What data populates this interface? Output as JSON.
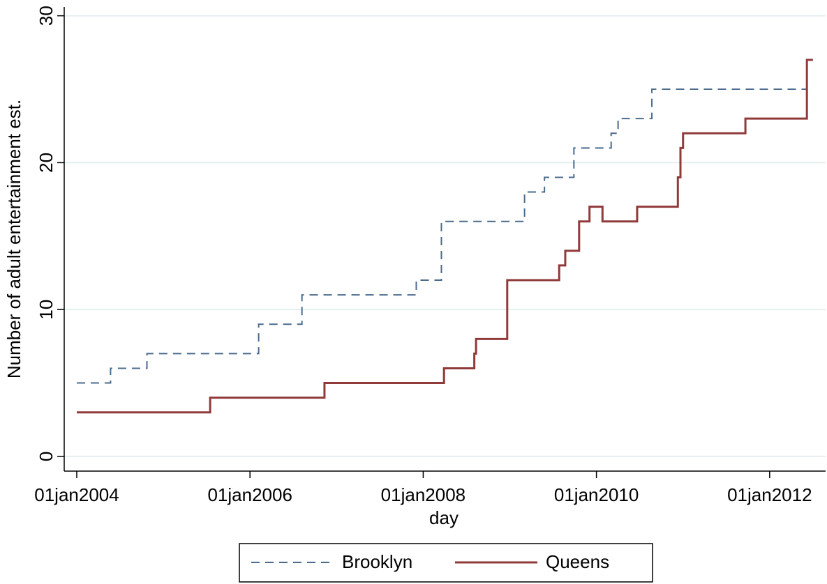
{
  "chart_data": {
    "type": "line",
    "x_label": "day",
    "y_label": "Number of adult entertainment est.",
    "xlim": [
      2003.855,
      2012.646
    ],
    "ylim": [
      -1,
      30.6
    ],
    "xticks": [
      {
        "value": 2004,
        "label": "01jan2004"
      },
      {
        "value": 2006,
        "label": "01jan2006"
      },
      {
        "value": 2008,
        "label": "01jan2008"
      },
      {
        "value": 2010,
        "label": "01jan2010"
      },
      {
        "value": 2012,
        "label": "01jan2012"
      }
    ],
    "yticks": [
      0,
      10,
      20,
      30
    ],
    "grid": true,
    "legend": "bottom",
    "series": [
      {
        "name": "Brooklyn",
        "color": "#4a6b8c",
        "style": "dashed",
        "x": [
          2004.0,
          2004.39,
          2004.39,
          2004.81,
          2004.81,
          2006.1,
          2006.1,
          2006.6,
          2006.6,
          2007.92,
          2007.92,
          2008.21,
          2008.21,
          2009.17,
          2009.17,
          2009.4,
          2009.4,
          2009.74,
          2009.74,
          2010.17,
          2010.17,
          2010.25,
          2010.25,
          2010.64,
          2010.64,
          2012.43,
          2012.43,
          2012.5
        ],
        "values": [
          5,
          5,
          6,
          6,
          7,
          7,
          9,
          9,
          11,
          11,
          12,
          12,
          16,
          16,
          18,
          18,
          19,
          19,
          21,
          21,
          22,
          22,
          23,
          23,
          25,
          25,
          27,
          27
        ]
      },
      {
        "name": "Queens",
        "color": "#903a3a",
        "style": "solid",
        "x": [
          2004.0,
          2005.54,
          2005.54,
          2006.86,
          2006.86,
          2008.24,
          2008.24,
          2008.59,
          2008.59,
          2008.61,
          2008.61,
          2008.97,
          2008.97,
          2009.57,
          2009.57,
          2009.64,
          2009.64,
          2009.8,
          2009.8,
          2009.92,
          2009.92,
          2010.07,
          2010.07,
          2010.47,
          2010.47,
          2010.94,
          2010.94,
          2010.97,
          2010.97,
          2011.0,
          2011.0,
          2011.72,
          2011.72,
          2012.43,
          2012.43,
          2012.5
        ],
        "values": [
          3,
          3,
          4,
          4,
          5,
          5,
          6,
          6,
          7,
          7,
          8,
          8,
          12,
          12,
          13,
          13,
          14,
          14,
          16,
          16,
          17,
          17,
          16,
          16,
          17,
          17,
          19,
          19,
          21,
          21,
          22,
          22,
          23,
          23,
          27,
          27
        ]
      }
    ]
  }
}
